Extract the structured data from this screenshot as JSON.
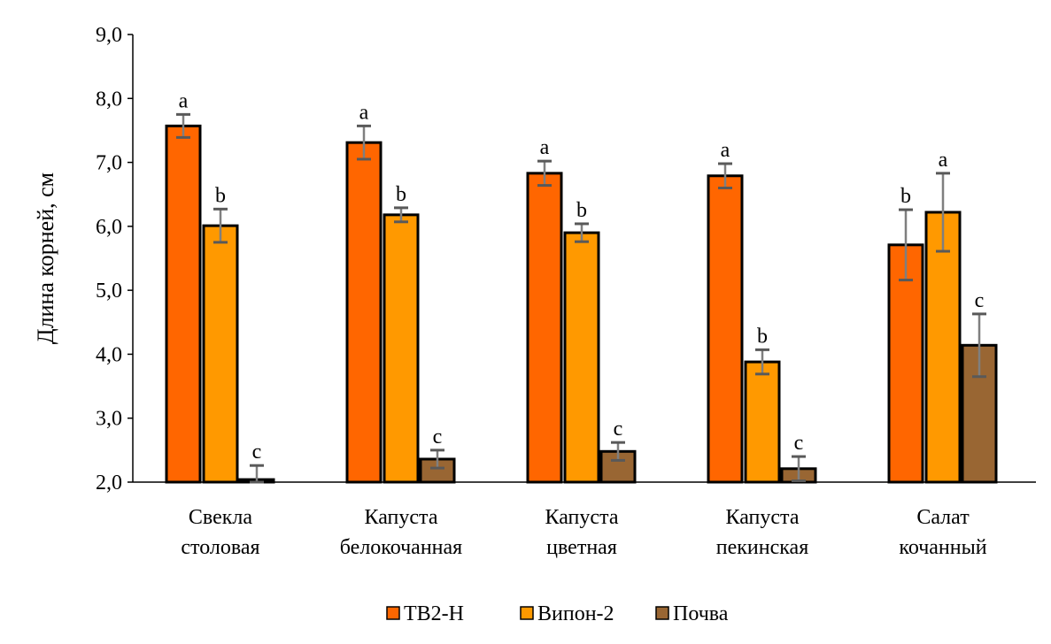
{
  "chart_data": {
    "type": "bar",
    "title": "",
    "xlabel": "",
    "ylabel": "Длина корней, см",
    "ylim": [
      2.0,
      9.0
    ],
    "yticks": [
      "2,0",
      "3,0",
      "4,0",
      "5,0",
      "6,0",
      "7,0",
      "8,0",
      "9,0"
    ],
    "grid": false,
    "legend_position": "bottom",
    "categories": [
      [
        "Свекла",
        "столовая"
      ],
      [
        "Капуста",
        "белокочанная"
      ],
      [
        "Капуста",
        "цветная"
      ],
      [
        "Капуста",
        "пекинская"
      ],
      [
        "Салат",
        "кочанный"
      ]
    ],
    "series": [
      {
        "name": "ТВ2-Н",
        "color": "#FF6600",
        "values": [
          7.57,
          7.31,
          6.83,
          6.79,
          5.71
        ],
        "errors": [
          0.18,
          0.26,
          0.19,
          0.19,
          0.55
        ],
        "labels": [
          "a",
          "a",
          "a",
          "a",
          "b"
        ]
      },
      {
        "name": "Випон-2",
        "color": "#FF9900",
        "values": [
          6.01,
          6.18,
          5.9,
          3.88,
          6.22
        ],
        "errors": [
          0.26,
          0.11,
          0.14,
          0.19,
          0.61
        ],
        "labels": [
          "b",
          "b",
          "b",
          "b",
          "a"
        ]
      },
      {
        "name": "Почва",
        "color": "#996633",
        "values": [
          2.04,
          2.36,
          2.48,
          2.21,
          4.14
        ],
        "errors": [
          0.22,
          0.14,
          0.14,
          0.19,
          0.49
        ],
        "labels": [
          "c",
          "c",
          "c",
          "c",
          "c"
        ]
      }
    ]
  }
}
